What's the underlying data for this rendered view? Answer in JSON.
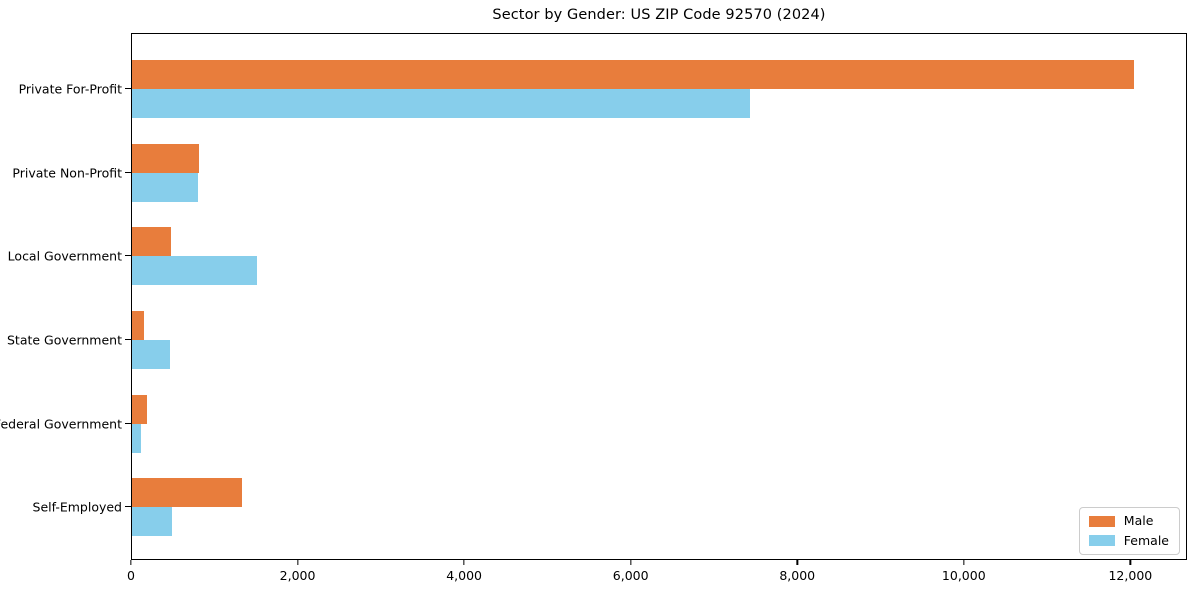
{
  "chart_data": {
    "type": "bar",
    "orientation": "horizontal",
    "title": "Sector by Gender: US ZIP Code 92570 (2024)",
    "categories": [
      "Private For-Profit",
      "Private Non-Profit",
      "Local Government",
      "State Government",
      "Federal Government",
      "Self-Employed"
    ],
    "series": [
      {
        "name": "Male",
        "color": "#e87d3c",
        "values": [
          12060,
          810,
          470,
          150,
          180,
          1320
        ]
      },
      {
        "name": "Female",
        "color": "#87ceeb",
        "values": [
          7440,
          800,
          1500,
          455,
          110,
          485
        ]
      }
    ],
    "xlabel": "",
    "ylabel": "",
    "xlim": [
      0,
      12680
    ],
    "xticks": [
      0,
      2000,
      4000,
      6000,
      8000,
      10000,
      12000
    ],
    "xtick_labels": [
      "0",
      "2,000",
      "4,000",
      "6,000",
      "8,000",
      "10,000",
      "12,000"
    ],
    "grid": false,
    "legend": {
      "position": "lower right",
      "entries": [
        "Male",
        "Female"
      ]
    },
    "colors": {
      "background": "#ffffff",
      "spine": "#000000",
      "text": "#000000",
      "legend_border": "#cccccc"
    }
  }
}
